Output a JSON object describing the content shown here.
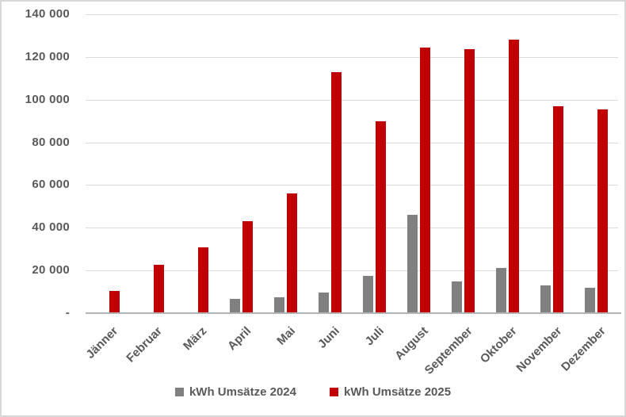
{
  "chart_data": {
    "type": "bar",
    "title": "",
    "xlabel": "",
    "ylabel": "",
    "categories": [
      "Jänner",
      "Februar",
      "März",
      "April",
      "Mai",
      "Juni",
      "Juli",
      "August",
      "September",
      "Oktober",
      "November",
      "Dezember"
    ],
    "series": [
      {
        "name": "kWh Umsätze 2024",
        "color": "#808080",
        "values": [
          0,
          0,
          0,
          6500,
          7500,
          9500,
          17500,
          46000,
          15000,
          21000,
          13000,
          12000
        ]
      },
      {
        "name": "kWh Umsätze 2025",
        "color": "#C00000",
        "values": [
          10500,
          22500,
          31000,
          43000,
          56000,
          113000,
          90000,
          124500,
          123500,
          128000,
          97000,
          95500
        ]
      }
    ],
    "ylim": [
      0,
      140000
    ],
    "y_ticks": [
      {
        "value": 140000,
        "label": "140 000"
      },
      {
        "value": 120000,
        "label": "120 000"
      },
      {
        "value": 100000,
        "label": "100 000"
      },
      {
        "value": 80000,
        "label": "80 000"
      },
      {
        "value": 60000,
        "label": "60 000"
      },
      {
        "value": 40000,
        "label": "40 000"
      },
      {
        "value": 20000,
        "label": "20 000"
      },
      {
        "value": 0,
        "label": "-"
      }
    ],
    "grid": "horizontal",
    "legend_position": "bottom"
  },
  "colors": {
    "series_2024": "#808080",
    "series_2025": "#C00000",
    "axis_text": "#595959",
    "gridline": "#dcdcdc",
    "axis_line": "#b4b4b4",
    "background": "#ffffff",
    "border": "#d8d8d8"
  }
}
